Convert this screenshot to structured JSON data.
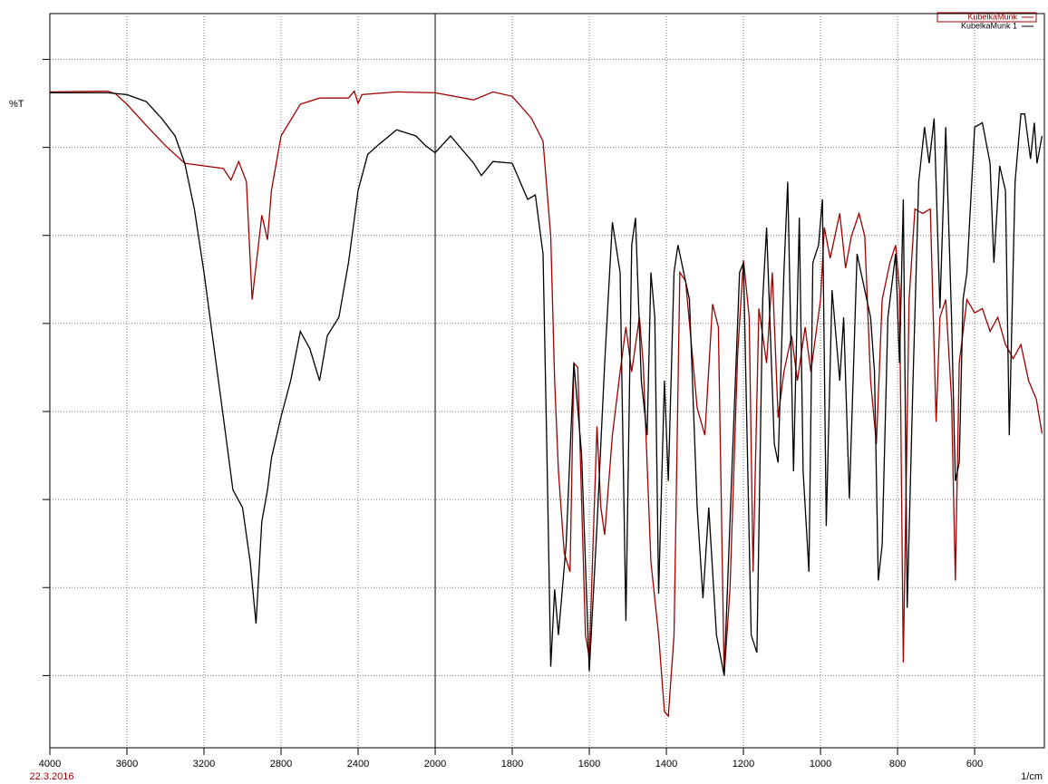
{
  "chart_data": {
    "type": "line",
    "y_label": "%T",
    "x_label": "1/cm",
    "date": "22.3.2016",
    "xlim": [
      4000,
      419
    ],
    "x_scale_split": 2000,
    "xticks": [
      4000,
      3600,
      3200,
      2800,
      2400,
      2000,
      1800,
      1600,
      1400,
      1200,
      1000,
      800,
      600
    ],
    "ylim": [
      0.18,
      8.52
    ],
    "yticks": [
      1,
      2,
      3,
      4,
      5,
      6,
      7,
      8
    ],
    "grid": true,
    "legend": "upper right",
    "series": [
      {
        "name": "KubelkaMunk",
        "color": "#a00000",
        "x": [
          4000,
          3700,
          3660,
          3600,
          3500,
          3400,
          3300,
          3200,
          3100,
          3060,
          3020,
          2980,
          2950,
          2920,
          2900,
          2870,
          2850,
          2800,
          2700,
          2600,
          2450,
          2420,
          2400,
          2380,
          2200,
          2000,
          1900,
          1850,
          1800,
          1750,
          1720,
          1700,
          1690,
          1680,
          1665,
          1650,
          1640,
          1630,
          1610,
          1600,
          1580,
          1570,
          1560,
          1540,
          1520,
          1505,
          1490,
          1470,
          1460,
          1440,
          1420,
          1405,
          1395,
          1380,
          1365,
          1350,
          1320,
          1300,
          1280,
          1265,
          1250,
          1235,
          1215,
          1200,
          1185,
          1175,
          1160,
          1140,
          1125,
          1110,
          1095,
          1075,
          1060,
          1040,
          1025,
          1000,
          990,
          975,
          950,
          935,
          920,
          900,
          885,
          870,
          855,
          840,
          820,
          805,
          795,
          785,
          770,
          755,
          735,
          715,
          700,
          690,
          675,
          660,
          650,
          640,
          620,
          600,
          580,
          560,
          540,
          520,
          500,
          480,
          460,
          440,
          425
        ],
        "values": [
          7.63,
          7.64,
          7.61,
          7.49,
          7.25,
          7.02,
          6.82,
          6.79,
          6.76,
          6.63,
          6.84,
          6.61,
          5.27,
          5.84,
          6.23,
          5.95,
          6.51,
          7.13,
          7.49,
          7.56,
          7.56,
          7.64,
          7.5,
          7.6,
          7.63,
          7.62,
          7.54,
          7.63,
          7.58,
          7.33,
          7.07,
          5.99,
          4.35,
          3.32,
          2.39,
          2.18,
          4.55,
          4.5,
          1.46,
          1.2,
          3.83,
          2.91,
          2.6,
          3.73,
          4.45,
          4.96,
          4.45,
          5.07,
          4.55,
          2.29,
          1.46,
          0.59,
          0.54,
          1.46,
          5.58,
          5.48,
          4.04,
          3.73,
          5.22,
          4.96,
          1.0,
          1.98,
          4.66,
          5.72,
          5.07,
          2.18,
          5.17,
          4.55,
          5.58,
          3.93,
          4.45,
          4.86,
          4.35,
          4.96,
          4.45,
          5.27,
          6.09,
          5.74,
          6.25,
          5.63,
          5.99,
          6.25,
          5.99,
          4.35,
          3.63,
          5.27,
          5.69,
          5.89,
          5.38,
          1.15,
          5.27,
          6.3,
          6.25,
          6.3,
          3.88,
          5.07,
          5.27,
          4.14,
          2.08,
          4.55,
          5.27,
          5.12,
          5.17,
          4.91,
          5.07,
          4.76,
          4.6,
          4.76,
          4.35,
          4.14,
          3.75
        ]
      },
      {
        "name": "KubelkaMunk 1",
        "color": "#000000",
        "x": [
          4000,
          3700,
          3600,
          3500,
          3420,
          3350,
          3300,
          3250,
          3200,
          3150,
          3100,
          3050,
          3000,
          2960,
          2930,
          2900,
          2870,
          2850,
          2800,
          2750,
          2700,
          2650,
          2600,
          2560,
          2500,
          2450,
          2400,
          2350,
          2300,
          2200,
          2100,
          2050,
          2000,
          1960,
          1900,
          1880,
          1850,
          1800,
          1760,
          1740,
          1720,
          1710,
          1700,
          1690,
          1680,
          1660,
          1640,
          1620,
          1600,
          1580,
          1560,
          1540,
          1520,
          1505,
          1490,
          1480,
          1465,
          1450,
          1440,
          1430,
          1420,
          1405,
          1395,
          1380,
          1370,
          1340,
          1320,
          1305,
          1290,
          1270,
          1250,
          1230,
          1210,
          1200,
          1180,
          1165,
          1150,
          1140,
          1120,
          1110,
          1095,
          1085,
          1070,
          1055,
          1045,
          1030,
          1020,
          1005,
          995,
          985,
          970,
          950,
          940,
          925,
          905,
          895,
          870,
          860,
          850,
          840,
          825,
          805,
          795,
          785,
          775,
          760,
          745,
          730,
          718,
          705,
          690,
          675,
          660,
          650,
          640,
          630,
          620,
          600,
          580,
          560,
          550,
          535,
          520,
          510,
          495,
          480,
          470,
          455,
          445,
          438,
          425
        ],
        "values": [
          7.62,
          7.62,
          7.6,
          7.52,
          7.33,
          7.13,
          6.82,
          6.3,
          5.58,
          4.76,
          3.94,
          3.11,
          2.91,
          2.29,
          1.59,
          2.75,
          3.11,
          3.47,
          3.94,
          4.35,
          4.91,
          4.71,
          4.35,
          4.86,
          5.07,
          5.69,
          6.51,
          6.92,
          7.02,
          7.2,
          7.13,
          7.02,
          6.94,
          7.13,
          6.82,
          6.68,
          6.84,
          6.82,
          6.41,
          6.46,
          5.79,
          3.52,
          1.1,
          1.98,
          1.46,
          2.49,
          4.55,
          3.52,
          1.05,
          2.7,
          4.55,
          6.15,
          5.58,
          1.62,
          5.89,
          6.2,
          4.35,
          3.73,
          5.58,
          5.07,
          1.93,
          4.35,
          3.21,
          5.58,
          5.89,
          5.27,
          2.91,
          1.88,
          2.91,
          1.46,
          1.0,
          3.32,
          5.58,
          5.69,
          1.46,
          1.26,
          5.27,
          6.09,
          3.63,
          3.42,
          5.58,
          6.61,
          3.32,
          6.2,
          3.32,
          2.18,
          5.69,
          5.89,
          6.41,
          2.7,
          5.38,
          4.35,
          5.07,
          3.01,
          5.79,
          5.58,
          5.07,
          4.45,
          2.08,
          2.49,
          5.07,
          5.79,
          4.55,
          6.41,
          1.77,
          4.35,
          6.61,
          7.23,
          6.82,
          7.33,
          5.17,
          7.23,
          5.07,
          3.21,
          3.42,
          5.27,
          5.58,
          7.23,
          7.28,
          6.82,
          5.69,
          6.79,
          6.51,
          3.73,
          6.61,
          7.38,
          7.38,
          6.87,
          7.28,
          6.82,
          7.13
        ]
      }
    ]
  }
}
